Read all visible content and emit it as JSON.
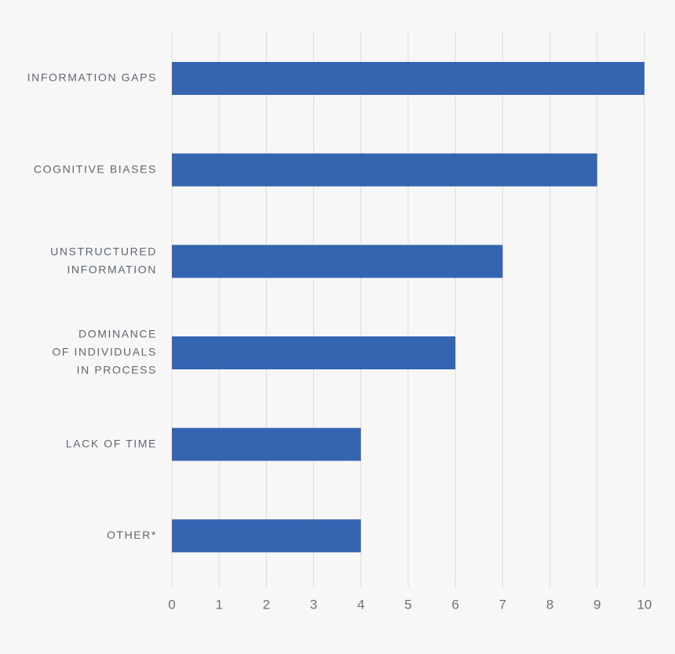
{
  "chart_data": {
    "type": "bar",
    "orientation": "horizontal",
    "categories": [
      [
        "INFORMATION GAPS"
      ],
      [
        "COGNITIVE BIASES"
      ],
      [
        "UNSTRUCTURED",
        "INFORMATION"
      ],
      [
        "DOMINANCE",
        "OF INDIVIDUALS",
        "IN PROCESS"
      ],
      [
        "LACK OF TIME"
      ],
      [
        "OTHER*"
      ]
    ],
    "values": [
      10,
      9,
      7,
      6,
      4,
      4
    ],
    "color": "#3565b0",
    "xlim": [
      0,
      10
    ],
    "xticks": [
      0,
      1,
      2,
      3,
      4,
      5,
      6,
      7,
      8,
      9,
      10
    ],
    "grid": true
  }
}
